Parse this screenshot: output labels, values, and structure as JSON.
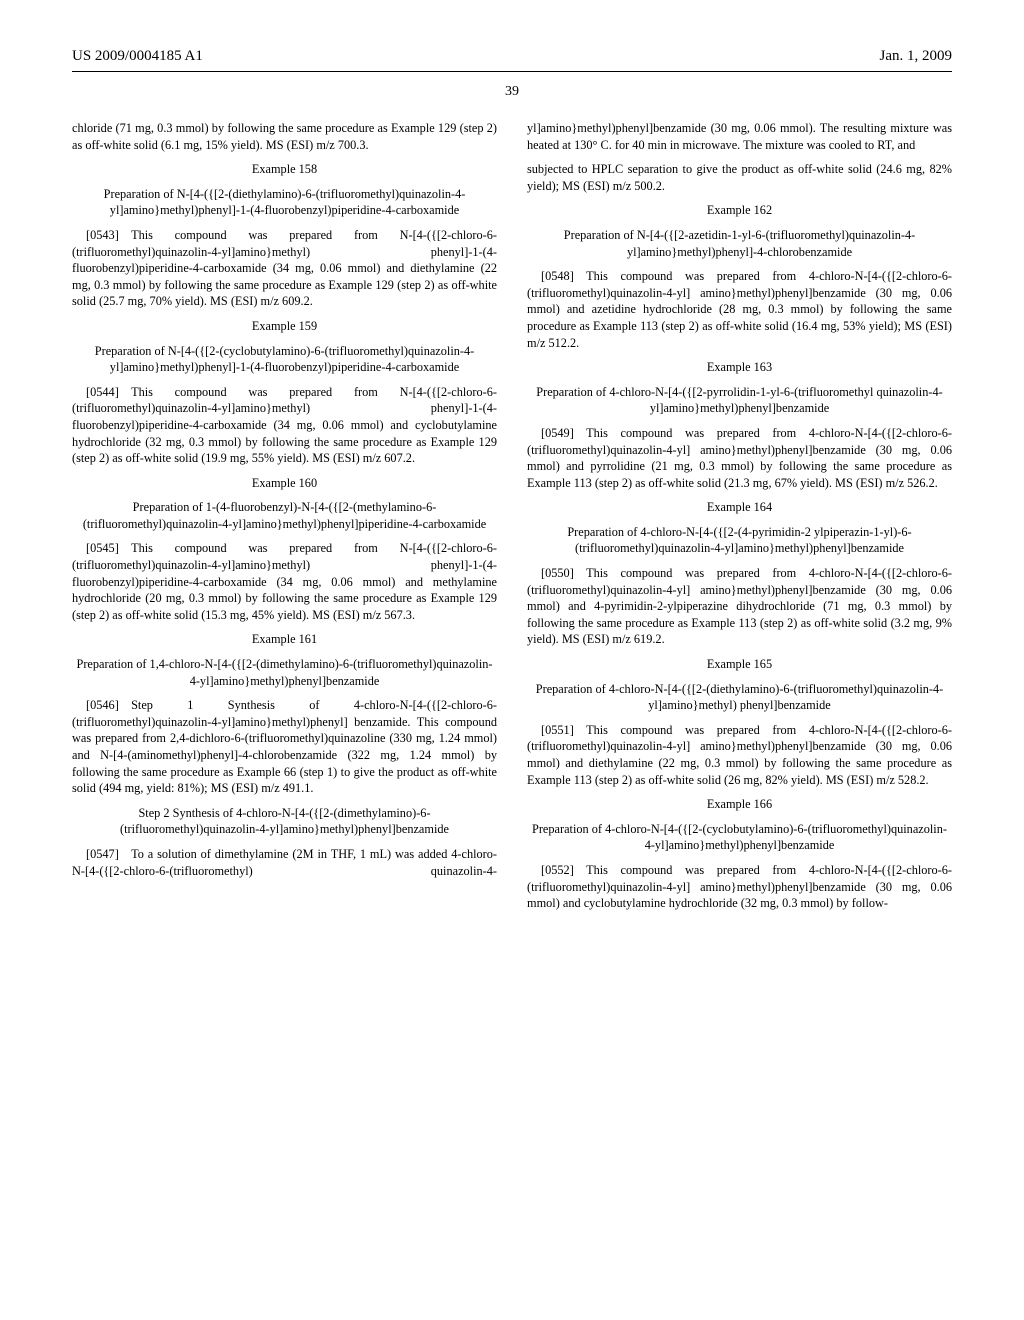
{
  "header": {
    "left": "US 2009/0004185 A1",
    "right": "Jan. 1, 2009"
  },
  "page_number": "39",
  "col1": {
    "intro": "chloride (71 mg, 0.3 mmol) by following the same procedure as Example 129 (step 2) as off-white solid (6.1 mg, 15% yield). MS (ESI) m/z 700.3.",
    "ex158": {
      "label": "Example 158",
      "title": "Preparation of N-[4-({[2-(diethylamino)-6-(trifluoromethyl)quinazolin-4-yl]amino}methyl)phenyl]-1-(4-fluorobenzyl)piperidine-4-carboxamide",
      "body": "[0543] This compound was prepared from N-[4-({[2-chloro-6-(trifluoromethyl)quinazolin-4-yl]amino}methyl) phenyl]-1-(4-fluorobenzyl)piperidine-4-carboxamide (34 mg, 0.06 mmol) and diethylamine (22 mg, 0.3 mmol) by following the same procedure as Example 129 (step 2) as off-white solid (25.7 mg, 70% yield). MS (ESI) m/z 609.2."
    },
    "ex159": {
      "label": "Example 159",
      "title": "Preparation of N-[4-({[2-(cyclobutylamino)-6-(trifluoromethyl)quinazolin-4-yl]amino}methyl)phenyl]-1-(4-fluorobenzyl)piperidine-4-carboxamide",
      "body": "[0544] This compound was prepared from N-[4-({[2-chloro-6-(trifluoromethyl)quinazolin-4-yl]amino}methyl) phenyl]-1-(4-fluorobenzyl)piperidine-4-carboxamide (34 mg, 0.06 mmol) and cyclobutylamine hydrochloride (32 mg, 0.3 mmol) by following the same procedure as Example 129 (step 2) as off-white solid (19.9 mg, 55% yield). MS (ESI) m/z 607.2."
    },
    "ex160": {
      "label": "Example 160",
      "title": "Preparation of 1-(4-fluorobenzyl)-N-[4-({[2-(methylamino-6-(trifluoromethyl)quinazolin-4-yl]amino}methyl)phenyl]piperidine-4-carboxamide",
      "body": "[0545] This compound was prepared from N-[4-({[2-chloro-6-(trifluoromethyl)quinazolin-4-yl]amino}methyl) phenyl]-1-(4-fluorobenzyl)piperidine-4-carboxamide (34 mg, 0.06 mmol) and methylamine hydrochloride (20 mg, 0.3 mmol) by following the same procedure as Example 129 (step 2) as off-white solid (15.3 mg, 45% yield). MS (ESI) m/z 567.3."
    },
    "ex161": {
      "label": "Example 161",
      "title": "Preparation of 1,4-chloro-N-[4-({[2-(dimethylamino)-6-(trifluoromethyl)quinazolin-4-yl]amino}methyl)phenyl]benzamide",
      "body1": "[0546] Step 1 Synthesis of 4-chloro-N-[4-({[2-chloro-6-(trifluoromethyl)quinazolin-4-yl]amino}methyl)phenyl] benzamide. This compound was prepared from 2,4-dichloro-6-(trifluoromethyl)quinazoline (330 mg, 1.24 mmol) and N-[4-(aminomethyl)phenyl]-4-chlorobenzamide (322 mg, 1.24 mmol) by following the same procedure as Example 66 (step 1) to give the product as off-white solid (494 mg, yield: 81%); MS (ESI) m/z 491.1.",
      "step2title": "Step 2 Synthesis of 4-chloro-N-[4-({[2-(dimethylamino)-6-(trifluoromethyl)quinazolin-4-yl]amino}methyl)phenyl]benzamide",
      "body2": "[0547] To a solution of dimethylamine (2M in THF, 1 mL) was added 4-chloro-N-[4-({[2-chloro-6-(trifluoromethyl) quinazolin-4-yl]amino}methyl)phenyl]benzamide (30 mg, 0.06 mmol). The resulting mixture was heated at 130° C. for 40 min in microwave. The mixture was cooled to RT, and"
    }
  },
  "col2": {
    "cont": "subjected to HPLC separation to give the product as off-white solid (24.6 mg, 82% yield); MS (ESI) m/z 500.2.",
    "ex162": {
      "label": "Example 162",
      "title": "Preparation of N-[4-({[2-azetidin-1-yl-6-(trifluoromethyl)quinazolin-4-yl]amino}methyl)phenyl]-4-chlorobenzamide",
      "body": "[0548] This compound was prepared from 4-chloro-N-[4-({[2-chloro-6-(trifluoromethyl)quinazolin-4-yl] amino}methyl)phenyl]benzamide (30 mg, 0.06 mmol) and azetidine hydrochloride (28 mg, 0.3 mmol) by following the same procedure as Example 113 (step 2) as off-white solid (16.4 mg, 53% yield); MS (ESI) m/z 512.2."
    },
    "ex163": {
      "label": "Example 163",
      "title": "Preparation of 4-chloro-N-[4-({[2-pyrrolidin-1-yl-6-(trifluoromethyl quinazolin-4-yl]amino}methyl)phenyl]benzamide",
      "body": "[0549] This compound was prepared from 4-chloro-N-[4-({[2-chloro-6-(trifluoromethyl)quinazolin-4-yl] amino}methyl)phenyl]benzamide (30 mg, 0.06 mmol) and pyrrolidine (21 mg, 0.3 mmol) by following the same procedure as Example 113 (step 2) as off-white solid (21.3 mg, 67% yield). MS (ESI) m/z 526.2."
    },
    "ex164": {
      "label": "Example 164",
      "title": "Preparation of 4-chloro-N-[4-({[2-(4-pyrimidin-2 ylpiperazin-1-yl)-6-(trifluoromethyl)quinazolin-4-yl]amino}methyl)phenyl]benzamide",
      "body": "[0550] This compound was prepared from 4-chloro-N-[4-({[2-chloro-6-(trifluoromethyl)quinazolin-4-yl] amino}methyl)phenyl]benzamide (30 mg, 0.06 mmol) and 4-pyrimidin-2-ylpiperazine dihydrochloride (71 mg, 0.3 mmol) by following the same procedure as Example 113 (step 2) as off-white solid (3.2 mg, 9% yield). MS (ESI) m/z 619.2."
    },
    "ex165": {
      "label": "Example 165",
      "title": "Preparation of 4-chloro-N-[4-({[2-(diethylamino)-6-(trifluoromethyl)quinazolin-4-yl]amino}methyl) phenyl]benzamide",
      "body": "[0551] This compound was prepared from 4-chloro-N-[4-({[2-chloro-6-(trifluoromethyl)quinazolin-4-yl] amino}methyl)phenyl]benzamide (30 mg, 0.06 mmol) and diethylamine (22 mg, 0.3 mmol) by following the same procedure as Example 113 (step 2) as off-white solid (26 mg, 82% yield). MS (ESI) m/z 528.2."
    },
    "ex166": {
      "label": "Example 166",
      "title": "Preparation of 4-chloro-N-[4-({[2-(cyclobutylamino)-6-(trifluoromethyl)quinazolin-4-yl]amino}methyl)phenyl]benzamide",
      "body": "[0552] This compound was prepared from 4-chloro-N-[4-({[2-chloro-6-(trifluoromethyl)quinazolin-4-yl] amino}methyl)phenyl]benzamide (30 mg, 0.06 mmol) and cyclobutylamine hydrochloride (32 mg, 0.3 mmol) by follow-"
    }
  }
}
